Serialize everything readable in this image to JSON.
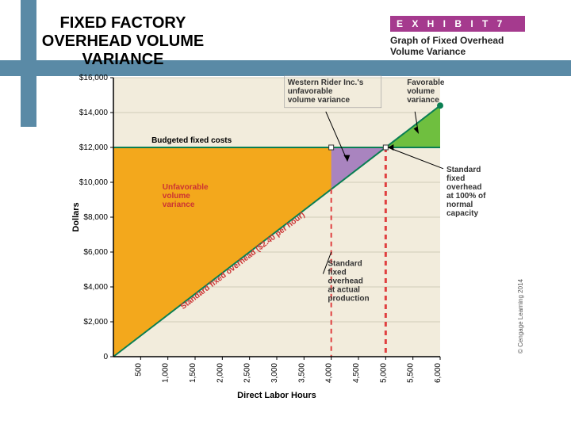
{
  "title": "FIXED FACTORY OVERHEAD VOLUME VARIANCE",
  "title_fontsize": 20,
  "title_color": "#000000",
  "accent_bar": {
    "color": "#5a8aa6"
  },
  "exhibit": {
    "tag": "E X H I B I T   7",
    "tag_bg": "#a53a8e",
    "tag_fg": "#ffffff",
    "label": "Graph of Fixed Overhead Volume Variance"
  },
  "chart": {
    "type": "area-line",
    "background_color": "#f2ecdc",
    "plot_bg": "#f2ecdc",
    "axis_color": "#000000",
    "grid_color": "#d0cbb8",
    "xlim": [
      0,
      6000
    ],
    "ylim": [
      0,
      16000
    ],
    "xticks": [
      500,
      1000,
      1500,
      2000,
      2500,
      3000,
      3500,
      4000,
      4500,
      5000,
      5500,
      6000
    ],
    "yticks": [
      0,
      2000,
      4000,
      6000,
      8000,
      10000,
      12000,
      14000,
      16000
    ],
    "ytick_labels": [
      "0",
      "$2,000",
      "$4,000",
      "$6,000",
      "$8,000",
      "$10,000",
      "$12,000",
      "$14,000",
      "$16,000"
    ],
    "xlabel": "Direct Labor Hours",
    "ylabel": "Dollars",
    "label_fontsize": 11,
    "budget_line": {
      "y": 12000,
      "color": "#0a7f53",
      "width": 2,
      "label": "Budgeted fixed costs"
    },
    "overhead_line": {
      "slope_per_hour": 2.4,
      "color": "#0a7f53",
      "width": 2,
      "label": "Standard fixed overhead ($2.40 per hour)"
    },
    "regions": {
      "unfavorable": {
        "color": "#f3a81c",
        "opacity": 1.0,
        "x_from": 0,
        "x_to": 5000,
        "label": "Unfavorable volume variance",
        "label_color": "#6b1f1f"
      },
      "western_rider": {
        "color": "#a984bf",
        "opacity": 1.0,
        "x_from": 4000,
        "x_to": 5000,
        "label": "Western Rider Inc.'s unfavorable volume variance"
      },
      "favorable": {
        "color": "#6fbf3f",
        "opacity": 1.0,
        "x_from": 5000,
        "x_to": 6000,
        "label": "Favorable volume variance"
      }
    },
    "vlines": {
      "actual_production": {
        "x": 4000,
        "color": "#e04040",
        "dash": "6,5",
        "width": 2,
        "label": "Standard fixed overhead at actual production"
      },
      "normal_capacity": {
        "x": 5000,
        "color": "#e04040",
        "dash": "6,5",
        "width": 3,
        "label": "Standard fixed overhead at 100% of normal capacity"
      }
    },
    "markers": {
      "green_dot_color": "#0a7f53",
      "green_dot_radius": 4,
      "marker_square_size": 6
    },
    "copyright": "© Cengage Learning 2014"
  }
}
